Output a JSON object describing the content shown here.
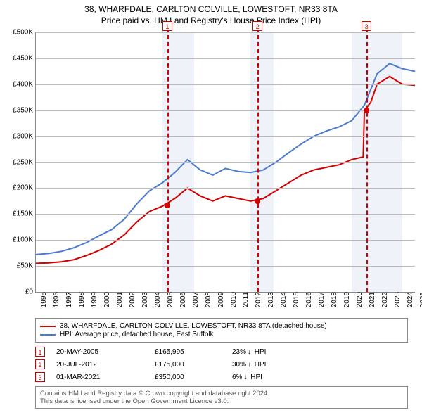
{
  "title_line1": "38, WHARFDALE, CARLTON COLVILLE, LOWESTOFT, NR33 8TA",
  "title_line2": "Price paid vs. HM Land Registry's House Price Index (HPI)",
  "chart": {
    "type": "line",
    "background_color": "#ffffff",
    "grid_color": "#bbbbbb",
    "y": {
      "min": 0,
      "max": 500000,
      "step": 50000,
      "prefix": "£",
      "suffix_k": "K",
      "label_fontsize": 10
    },
    "x_years": [
      1995,
      1996,
      1997,
      1998,
      1999,
      2000,
      2001,
      2002,
      2003,
      2004,
      2005,
      2006,
      2007,
      2008,
      2009,
      2010,
      2011,
      2012,
      2013,
      2014,
      2015,
      2016,
      2017,
      2018,
      2019,
      2020,
      2021,
      2022,
      2023,
      2024,
      2025
    ],
    "shade_ranges": [
      [
        2005,
        2007.5
      ],
      [
        2012,
        2013.8
      ],
      [
        2020,
        2024
      ]
    ],
    "shade_color": "#6a8cc8",
    "shade_opacity": 0.1,
    "series": [
      {
        "name": "property",
        "color": "#d40000",
        "width": 2,
        "points": [
          [
            1995,
            55
          ],
          [
            1996,
            56
          ],
          [
            1997,
            58
          ],
          [
            1998,
            62
          ],
          [
            1999,
            70
          ],
          [
            2000,
            80
          ],
          [
            2001,
            92
          ],
          [
            2002,
            110
          ],
          [
            2003,
            135
          ],
          [
            2004,
            155
          ],
          [
            2005,
            165
          ],
          [
            2006,
            180
          ],
          [
            2007,
            200
          ],
          [
            2008,
            185
          ],
          [
            2009,
            175
          ],
          [
            2010,
            185
          ],
          [
            2011,
            180
          ],
          [
            2012,
            175
          ],
          [
            2013,
            180
          ],
          [
            2014,
            195
          ],
          [
            2015,
            210
          ],
          [
            2016,
            225
          ],
          [
            2017,
            235
          ],
          [
            2018,
            240
          ],
          [
            2019,
            245
          ],
          [
            2020,
            255
          ],
          [
            2020.9,
            260
          ],
          [
            2021,
            350
          ],
          [
            2021.5,
            365
          ],
          [
            2022,
            400
          ],
          [
            2023,
            415
          ],
          [
            2024,
            400
          ],
          [
            2025,
            398
          ]
        ]
      },
      {
        "name": "hpi",
        "color": "#4a7bd0",
        "width": 2,
        "points": [
          [
            1995,
            72
          ],
          [
            1996,
            74
          ],
          [
            1997,
            78
          ],
          [
            1998,
            85
          ],
          [
            1999,
            95
          ],
          [
            2000,
            108
          ],
          [
            2001,
            120
          ],
          [
            2002,
            140
          ],
          [
            2003,
            170
          ],
          [
            2004,
            195
          ],
          [
            2005,
            210
          ],
          [
            2006,
            230
          ],
          [
            2007,
            255
          ],
          [
            2008,
            235
          ],
          [
            2009,
            225
          ],
          [
            2010,
            238
          ],
          [
            2011,
            232
          ],
          [
            2012,
            230
          ],
          [
            2013,
            235
          ],
          [
            2014,
            250
          ],
          [
            2015,
            268
          ],
          [
            2016,
            285
          ],
          [
            2017,
            300
          ],
          [
            2018,
            310
          ],
          [
            2019,
            318
          ],
          [
            2020,
            330
          ],
          [
            2021,
            360
          ],
          [
            2022,
            420
          ],
          [
            2023,
            440
          ],
          [
            2024,
            430
          ],
          [
            2025,
            425
          ]
        ]
      }
    ],
    "markers": [
      {
        "n": "1",
        "year": 2005.4,
        "color": "#d40000",
        "dot_value": 166
      },
      {
        "n": "2",
        "year": 2012.55,
        "color": "#d40000",
        "dot_value": 175
      },
      {
        "n": "3",
        "year": 2021.17,
        "color": "#d40000",
        "dot_value": 350
      }
    ]
  },
  "legend": {
    "items": [
      {
        "color": "#d40000",
        "label": "38, WHARFDALE, CARLTON COLVILLE, LOWESTOFT, NR33 8TA (detached house)"
      },
      {
        "color": "#4a7bd0",
        "label": "HPI: Average price, detached house, East Suffolk"
      }
    ]
  },
  "sales": [
    {
      "n": "1",
      "color": "#d40000",
      "date": "20-MAY-2005",
      "price": "£165,995",
      "diff": "23%",
      "diff_suffix": "HPI"
    },
    {
      "n": "2",
      "color": "#d40000",
      "date": "20-JUL-2012",
      "price": "£175,000",
      "diff": "30%",
      "diff_suffix": "HPI"
    },
    {
      "n": "3",
      "color": "#d40000",
      "date": "01-MAR-2021",
      "price": "£350,000",
      "diff": "6%",
      "diff_suffix": "HPI"
    }
  ],
  "footnote_line1": "Contains HM Land Registry data © Crown copyright and database right 2024.",
  "footnote_line2": "This data is licensed under the Open Government Licence v3.0."
}
